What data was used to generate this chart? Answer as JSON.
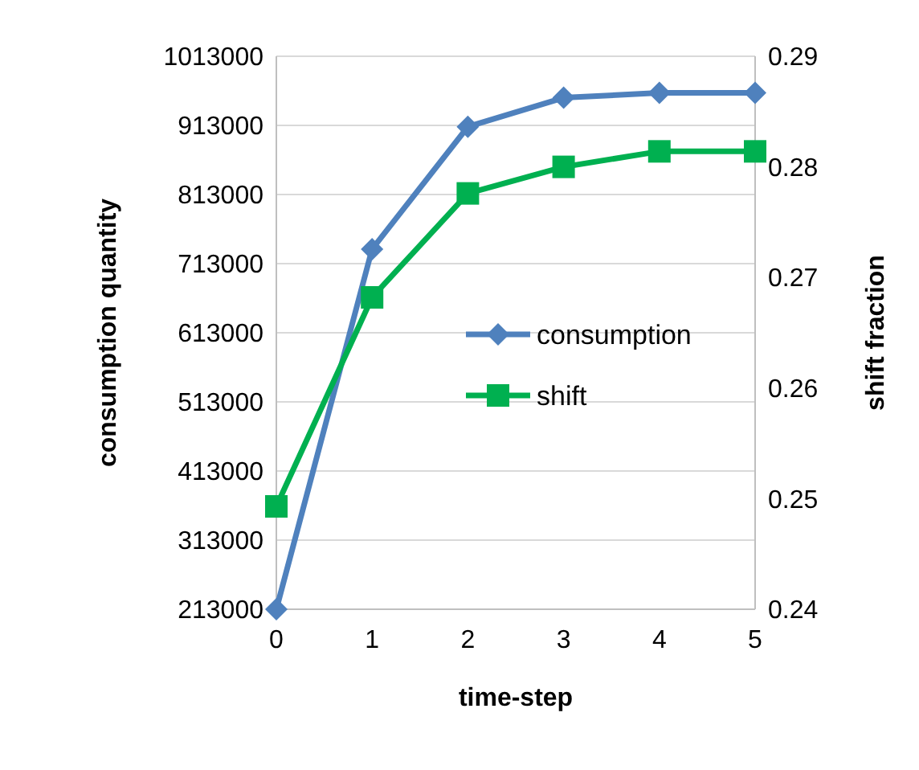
{
  "chart_data": {
    "type": "line",
    "xlabel": "time-step",
    "ylabel": "consumption quantity",
    "y2label": "shift fraction",
    "x": [
      0,
      1,
      2,
      3,
      4,
      5
    ],
    "xlim": [
      0,
      5
    ],
    "xticks": [
      0,
      1,
      2,
      3,
      4,
      5
    ],
    "ylim": [
      213000,
      1013000
    ],
    "yticks": [
      213000,
      313000,
      413000,
      513000,
      613000,
      713000,
      813000,
      913000,
      1013000
    ],
    "y2lim": [
      0.24,
      0.29
    ],
    "y2ticks": [
      0.24,
      0.25,
      0.26,
      0.27,
      0.28,
      0.29
    ],
    "grid": "y",
    "legend": "right",
    "series": [
      {
        "name": "consumption",
        "color": "#4f81bd",
        "marker": "diamond",
        "values": [
          213000,
          734000,
          911000,
          953000,
          960000,
          960000
        ]
      },
      {
        "name": "shift",
        "color": "#00b050",
        "marker": "square",
        "axis": "y2",
        "values": [
          0.2493,
          0.2682,
          0.2776,
          0.28,
          0.2814,
          0.2814
        ]
      }
    ]
  }
}
